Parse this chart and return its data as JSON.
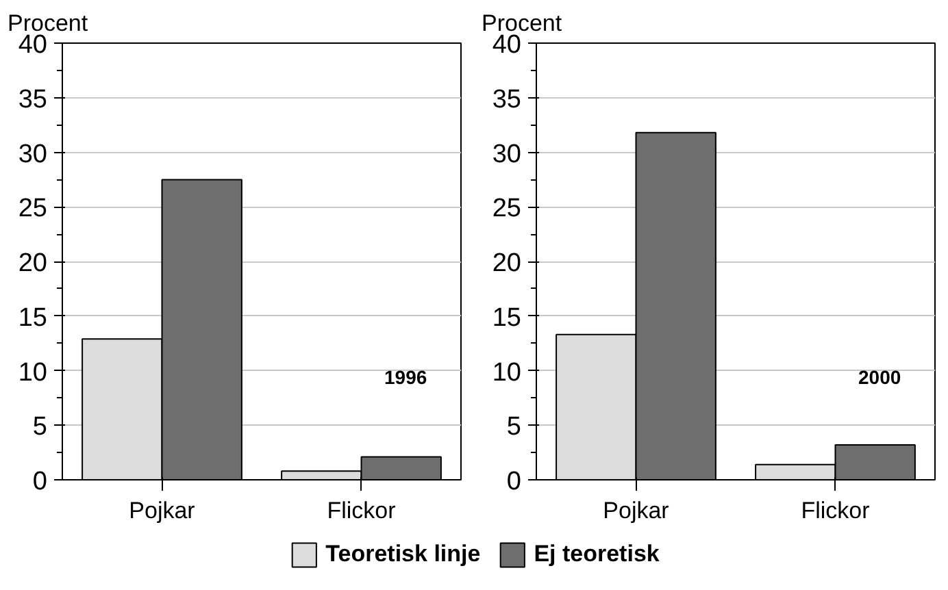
{
  "chart_data": [
    {
      "type": "bar",
      "ylabel": "Procent",
      "categories": [
        "Pojkar",
        "Flickor"
      ],
      "ylim": [
        0,
        40
      ],
      "yticks": [
        0,
        5,
        10,
        15,
        20,
        25,
        30,
        35,
        40
      ],
      "grid": "y",
      "legend": "bottom",
      "annotations": [
        "1996"
      ],
      "series": [
        {
          "name": "Teoretisk linje",
          "color": "#dcdcdc",
          "values": [
            12.9,
            0.8
          ]
        },
        {
          "name": "Ej teoretisk",
          "color": "#6e6e6e",
          "values": [
            27.5,
            2.1
          ]
        }
      ]
    },
    {
      "type": "bar",
      "ylabel": "Procent",
      "categories": [
        "Pojkar",
        "Flickor"
      ],
      "ylim": [
        0,
        40
      ],
      "yticks": [
        0,
        5,
        10,
        15,
        20,
        25,
        30,
        35,
        40
      ],
      "grid": "y",
      "annotations": [
        "2000"
      ],
      "series": [
        {
          "color": "#dcdcdc",
          "values": [
            13.3,
            1.4
          ]
        },
        {
          "color": "#6e6e6e",
          "values": [
            31.8,
            3.2
          ]
        }
      ]
    }
  ]
}
